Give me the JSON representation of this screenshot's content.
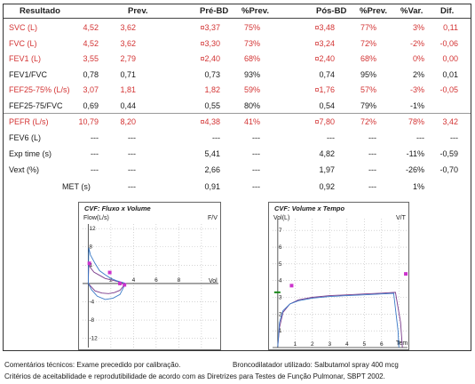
{
  "headers": {
    "resultado": "Resultado",
    "prev": "Prev.",
    "pre_bd": "Pré-BD",
    "pct_prev_1": "%Prev.",
    "pos_bd": "Pós-BD",
    "pct_prev_2": "%Prev.",
    "pct_var": "%Var.",
    "dif": "Dif."
  },
  "rows": [
    {
      "label": "SVC  (L)",
      "red": true,
      "v1": "4,52",
      "v2": "3,62",
      "pre": "¤3,37",
      "pp1": "75%",
      "pos": "¤3,48",
      "pp2": "77%",
      "var": "3%",
      "dif": "0,11"
    },
    {
      "label": "FVC  (L)",
      "red": true,
      "v1": "4,52",
      "v2": "3,62",
      "pre": "¤3,30",
      "pp1": "73%",
      "pos": "¤3,24",
      "pp2": "72%",
      "var": "-2%",
      "dif": "-0,06"
    },
    {
      "label": "FEV1  (L)",
      "red": true,
      "v1": "3,55",
      "v2": "2,79",
      "pre": "¤2,40",
      "pp1": "68%",
      "pos": "¤2,40",
      "pp2": "68%",
      "var": "0%",
      "dif": "0,00"
    },
    {
      "label": "FEV1/FVC",
      "red": false,
      "v1": "0,78",
      "v2": "0,71",
      "pre": "0,73",
      "pp1": "93%",
      "pos": "0,74",
      "pp2": "95%",
      "var": "2%",
      "dif": "0,01"
    },
    {
      "label": "FEF25-75%  (L/s)",
      "red": true,
      "v1": "3,07",
      "v2": "1,81",
      "pre": "1,82",
      "pp1": "59%",
      "pos": "¤1,76",
      "pp2": "57%",
      "var": "-3%",
      "dif": "-0,05"
    },
    {
      "label": "FEF25-75/FVC",
      "red": false,
      "v1": "0,69",
      "v2": "0,44",
      "pre": "0,55",
      "pp1": "80%",
      "pos": "0,54",
      "pp2": "79%",
      "var": "-1%",
      "dif": ""
    },
    {
      "label": "PEFR  (L/s)",
      "red": true,
      "v1": "10,79",
      "v2": "8,20",
      "pre": "¤4,38",
      "pp1": "41%",
      "pos": "¤7,80",
      "pp2": "72%",
      "var": "78%",
      "dif": "3,42"
    },
    {
      "label": "FEV6  (L)",
      "red": false,
      "v1": "---",
      "v2": "---",
      "pre": "---",
      "pp1": "---",
      "pos": "---",
      "pp2": "---",
      "var": "---",
      "dif": "---"
    },
    {
      "label": "Exp time  (s)",
      "red": false,
      "v1": "---",
      "v2": "---",
      "pre": "5,41",
      "pp1": "---",
      "pos": "4,82",
      "pp2": "---",
      "var": "-11%",
      "dif": "-0,59"
    },
    {
      "label": "Vext  (%)",
      "red": false,
      "v1": "---",
      "v2": "---",
      "pre": "2,66",
      "pp1": "---",
      "pos": "1,97",
      "pp2": "---",
      "var": "-26%",
      "dif": "-0,70"
    },
    {
      "label": "MET  (s)",
      "red": false,
      "v1": "",
      "v2": "---",
      "pre": "0,91",
      "pp1": "---",
      "pos": "0,92",
      "pp2": "---",
      "var": "1%",
      "dif": ""
    }
  ],
  "chart_data": [
    {
      "type": "line",
      "title": "CVF: Fluxo x Volume",
      "ylabel": "Flow(L/s)",
      "right_label": "F/V",
      "xlabel": "Vol",
      "x_ticks": [
        "2",
        "4",
        "6",
        "8"
      ],
      "y_ticks": [
        "12",
        "8",
        "4",
        "-4",
        "-8",
        "-12"
      ],
      "xlim": [
        -0.5,
        11.5
      ],
      "ylim": [
        -14,
        13
      ],
      "series": [
        {
          "values": [
            [
              0,
              0
            ],
            [
              0.05,
              4.4
            ],
            [
              0.15,
              3.6
            ],
            [
              0.5,
              2.5
            ],
            [
              1,
              1.8
            ],
            [
              1.5,
              1.1
            ],
            [
              2,
              0.8
            ],
            [
              2.5,
              0.5
            ],
            [
              3,
              0.2
            ],
            [
              3.3,
              0
            ],
            [
              2.8,
              -1.5
            ],
            [
              2.3,
              -2
            ],
            [
              1.8,
              -2.2
            ],
            [
              1.2,
              -2.1
            ],
            [
              0.6,
              -1.6
            ],
            [
              0,
              0
            ]
          ],
          "color": "#7a3a8a"
        },
        {
          "values": [
            [
              0,
              0
            ],
            [
              0.05,
              7.8
            ],
            [
              0.2,
              6.2
            ],
            [
              0.6,
              4.4
            ],
            [
              1,
              2.8
            ],
            [
              1.5,
              1.9
            ],
            [
              2,
              1.1
            ],
            [
              2.5,
              0.6
            ],
            [
              3.2,
              0.1
            ],
            [
              3.3,
              0
            ],
            [
              2.8,
              -2.4
            ],
            [
              2.2,
              -3.2
            ],
            [
              1.5,
              -3.5
            ],
            [
              0.8,
              -2.8
            ],
            [
              0.3,
              -1.4
            ],
            [
              0,
              0
            ]
          ],
          "color": "#3a7ac8"
        }
      ],
      "points": [
        [
          0.1,
          4.4
        ],
        [
          1.9,
          2.4
        ],
        [
          2.8,
          0
        ],
        [
          3.2,
          -0.3
        ]
      ]
    },
    {
      "type": "line",
      "title": "CVF: Volume x Tempo",
      "ylabel": "Vol(L)",
      "right_label": "V/T",
      "xlabel": "Tem",
      "x_ticks": [
        "1",
        "2",
        "3",
        "4",
        "5",
        "6",
        "7"
      ],
      "y_ticks": [
        "7",
        "6",
        "5",
        "4",
        "3",
        "2",
        "1"
      ],
      "xlim": [
        -0.3,
        7.5
      ],
      "ylim": [
        0,
        7.7
      ],
      "series": [
        {
          "values": [
            [
              0,
              0.05
            ],
            [
              0.1,
              1.2
            ],
            [
              0.3,
              2.1
            ],
            [
              0.7,
              2.6
            ],
            [
              1.2,
              2.85
            ],
            [
              2,
              3
            ],
            [
              3,
              3.1
            ],
            [
              4,
              3.15
            ],
            [
              5,
              3.2
            ],
            [
              6,
              3.25
            ],
            [
              6.8,
              3.3
            ],
            [
              7.1,
              1.5
            ],
            [
              7.2,
              0
            ]
          ],
          "color": "#7a3a8a"
        },
        {
          "values": [
            [
              0,
              0.05
            ],
            [
              0.1,
              1.5
            ],
            [
              0.3,
              2.2
            ],
            [
              0.7,
              2.6
            ],
            [
              1.2,
              2.8
            ],
            [
              2,
              2.95
            ],
            [
              3,
              3.05
            ],
            [
              4,
              3.1
            ],
            [
              5,
              3.15
            ],
            [
              6,
              3.2
            ],
            [
              6.7,
              3.24
            ],
            [
              6.95,
              1
            ],
            [
              7.0,
              0
            ]
          ],
          "color": "#3a7ac8"
        }
      ],
      "points": [
        [
          0.8,
          3.7
        ],
        [
          7.4,
          4.4
        ]
      ],
      "green_marker": [
        0,
        3.3
      ]
    }
  ],
  "footer": {
    "line1_left": "Comentários técnicos: Exame precedido por calibração.",
    "line1_right": "Broncodilatador utilizado:  Salbutamol spray 400 mcg",
    "line2": "Critérios de aceitabilidade e reprodutibilidade de acordo com as Diretrizes para Testes de Função Pulmonar, SBPT 2002."
  },
  "colors": {
    "red": "#d33434",
    "magenta": "#cc33cc",
    "purple": "#7a3a8a",
    "blue": "#3a7ac8",
    "green": "#1a8a1a"
  }
}
